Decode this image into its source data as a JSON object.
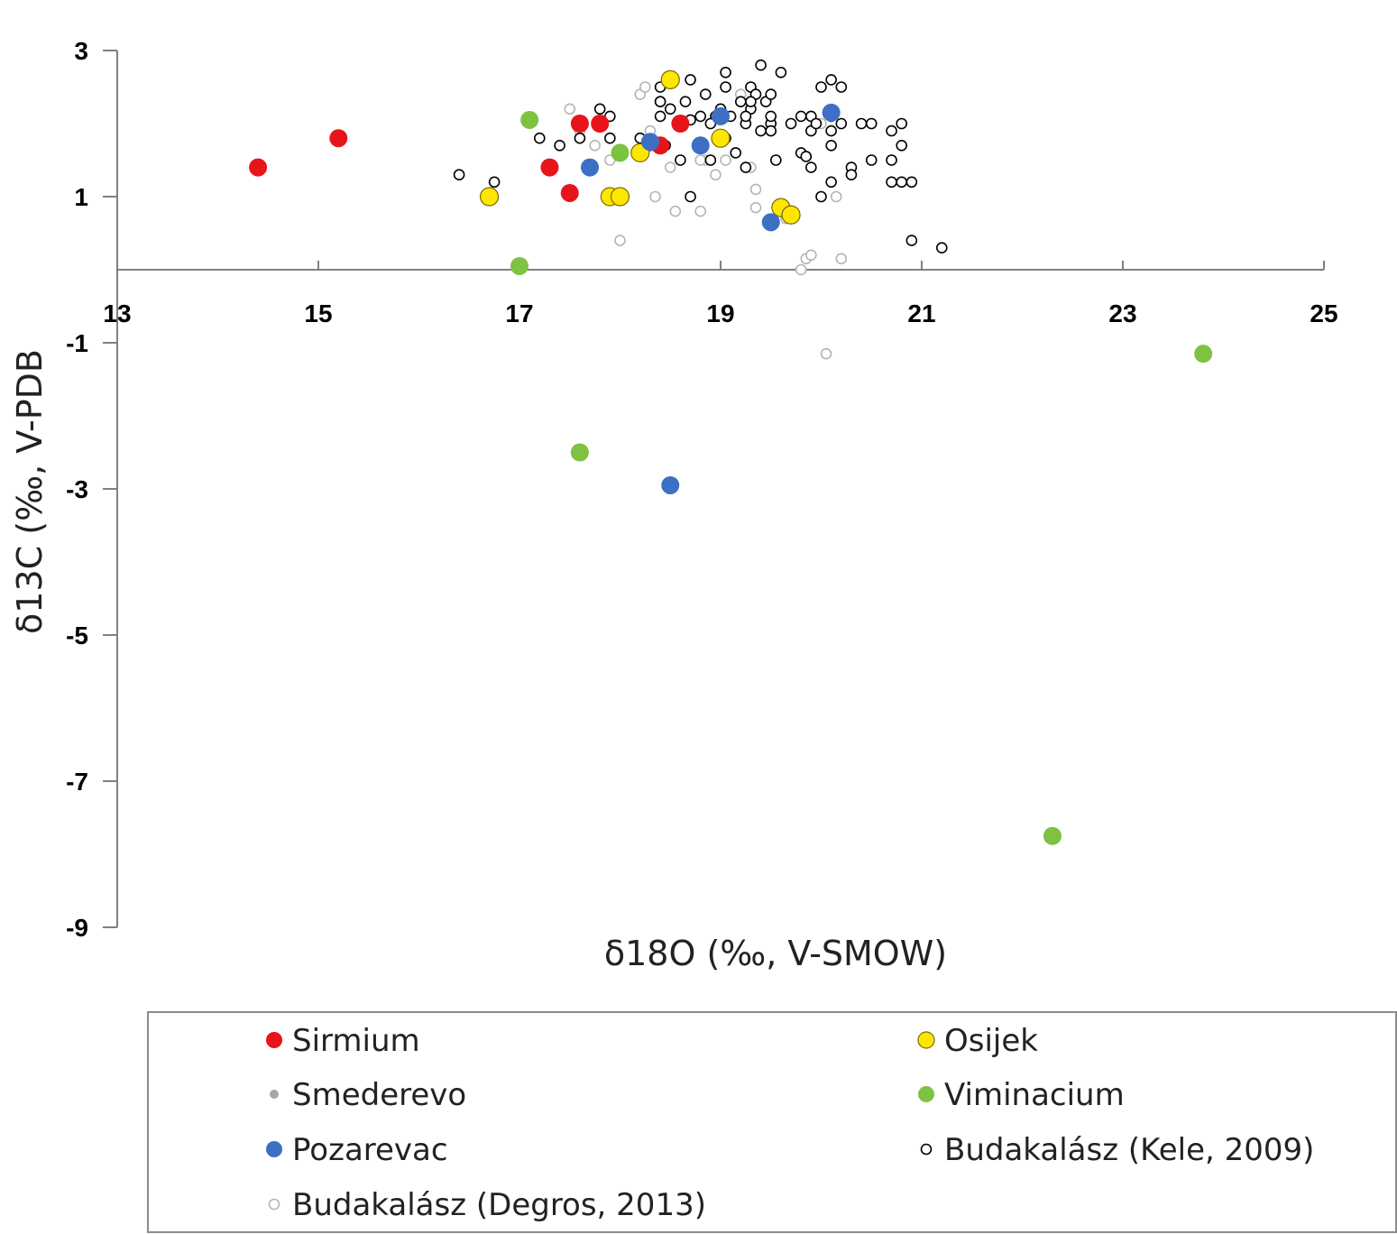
{
  "chart_data": {
    "type": "scatter",
    "title": "",
    "xlabel": "δ18O (‰, V-SMOW)",
    "ylabel": "δ13C (‰, V-PDB",
    "xlim": [
      13,
      25
    ],
    "ylim": [
      -9,
      3
    ],
    "x_ticks": [
      "13",
      "15",
      "17",
      "19",
      "21",
      "23",
      "25"
    ],
    "y_ticks": [
      "3",
      "1",
      "-1",
      "-3",
      "-5",
      "-7",
      "-9"
    ],
    "legend": "bottom",
    "grid": false,
    "series": [
      {
        "name": "Sirmium",
        "color": "#e8141b",
        "marker": "filled-large",
        "x": [
          14.4,
          15.2,
          17.3,
          17.5,
          17.6,
          17.8,
          18.4,
          18.6
        ],
        "y": [
          1.4,
          1.8,
          1.4,
          1.05,
          2.0,
          2.0,
          1.7,
          2.0
        ]
      },
      {
        "name": "Osijek",
        "color": "#ffe600",
        "marker": "filled-outlined",
        "x": [
          16.7,
          17.9,
          18.0,
          18.2,
          18.5,
          19.0,
          19.6,
          19.7
        ],
        "y": [
          1.0,
          1.0,
          1.0,
          1.6,
          2.6,
          1.8,
          0.85,
          0.75
        ]
      },
      {
        "name": "Smederevo",
        "color": "#a6a6a6",
        "marker": "small-filled",
        "x": [],
        "y": []
      },
      {
        "name": "Viminacium",
        "color": "#7dc242",
        "marker": "filled-large",
        "x": [
          17.1,
          17.0,
          18.0,
          17.6,
          23.8,
          22.3
        ],
        "y": [
          2.05,
          0.05,
          1.6,
          -2.5,
          -1.15,
          -7.75
        ]
      },
      {
        "name": "Pozarevac",
        "color": "#3d6fc4",
        "marker": "filled-large",
        "x": [
          17.7,
          18.3,
          18.8,
          19.0,
          20.1,
          19.5,
          18.5
        ],
        "y": [
          1.4,
          1.75,
          1.7,
          2.1,
          2.15,
          0.65,
          -2.95
        ]
      },
      {
        "name": "Budakalász (Kele, 2009)",
        "color": "#000000",
        "marker": "open-black",
        "x": [
          16.4,
          16.75,
          17.2,
          17.4,
          17.6,
          17.8,
          17.9,
          17.9,
          18.2,
          18.3,
          18.4,
          18.4,
          18.4,
          18.45,
          18.5,
          18.6,
          18.65,
          18.7,
          18.7,
          18.8,
          18.85,
          18.9,
          18.95,
          19.0,
          19.05,
          19.05,
          19.05,
          19.1,
          19.15,
          19.2,
          19.25,
          19.25,
          19.3,
          19.3,
          19.35,
          19.4,
          19.45,
          19.5,
          19.5,
          19.5,
          19.55,
          19.6,
          19.7,
          19.8,
          19.8,
          19.9,
          19.9,
          19.9,
          20.0,
          20.0,
          20.1,
          20.1,
          20.1,
          20.1,
          20.2,
          20.2,
          20.3,
          20.3,
          20.4,
          20.5,
          20.5,
          20.7,
          20.7,
          20.8,
          20.8,
          20.9,
          20.9,
          21.2,
          18.4,
          19.25,
          18.7,
          18.9,
          19.3,
          19.5,
          19.85,
          20.1,
          19.4,
          19.95,
          20.7,
          20.8
        ],
        "y": [
          1.3,
          1.2,
          1.8,
          1.7,
          1.8,
          2.2,
          2.1,
          1.8,
          1.8,
          1.7,
          2.3,
          2.5,
          2.1,
          1.7,
          2.2,
          1.5,
          2.3,
          2.6,
          1.0,
          2.1,
          2.4,
          1.5,
          2.1,
          2.2,
          2.7,
          2.5,
          1.8,
          2.1,
          1.6,
          2.3,
          2.0,
          1.4,
          2.5,
          2.2,
          2.4,
          2.8,
          2.3,
          2.4,
          2.0,
          1.9,
          1.5,
          2.7,
          2.0,
          2.1,
          1.6,
          2.1,
          1.9,
          1.4,
          2.5,
          1.0,
          2.6,
          2.1,
          1.9,
          1.7,
          2.5,
          2.0,
          1.4,
          1.3,
          2.0,
          2.0,
          1.5,
          1.9,
          1.5,
          2.0,
          1.7,
          1.2,
          0.4,
          0.3,
          2.3,
          2.1,
          2.05,
          2.0,
          2.3,
          2.1,
          1.55,
          1.2,
          1.9,
          2.0,
          1.2,
          1.2
        ]
      },
      {
        "name": "Budakalász (Degros, 2013)",
        "color": "#bfbfbf",
        "marker": "open-gray",
        "x": [
          17.5,
          17.6,
          17.75,
          17.9,
          18.0,
          18.2,
          18.3,
          18.35,
          18.5,
          18.55,
          18.8,
          18.85,
          18.95,
          19.05,
          19.2,
          19.3,
          19.35,
          19.35,
          19.5,
          19.6,
          19.65,
          19.8,
          19.85,
          19.9,
          20.0,
          20.05,
          20.15,
          20.2,
          18.25,
          18.8
        ],
        "y": [
          2.2,
          1.9,
          1.7,
          1.5,
          0.4,
          2.4,
          1.9,
          1.0,
          1.4,
          0.8,
          0.8,
          1.5,
          1.3,
          1.5,
          2.4,
          1.4,
          1.1,
          0.85,
          1.9,
          0.8,
          0.7,
          0.0,
          0.15,
          0.2,
          2.0,
          -1.15,
          1.0,
          0.15,
          2.5,
          1.5
        ]
      }
    ]
  }
}
